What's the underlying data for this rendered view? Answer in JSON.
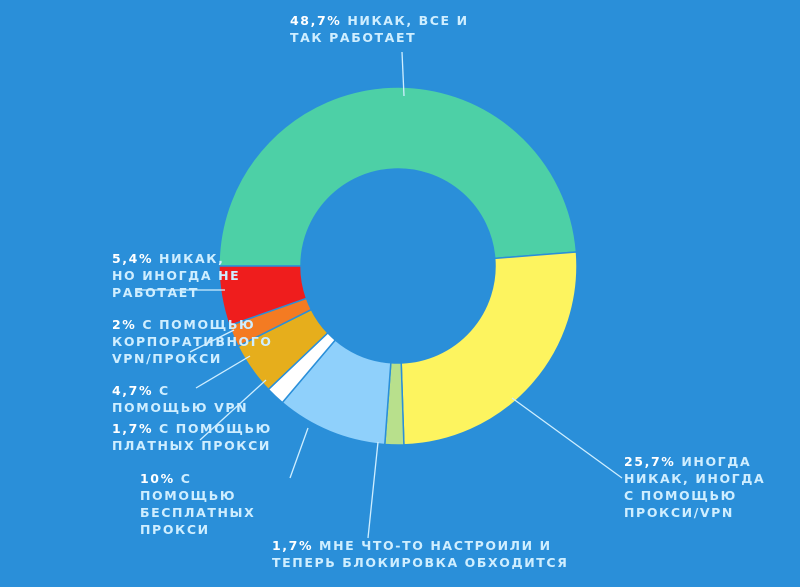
{
  "chart_data": {
    "type": "donut",
    "categories": [
      "НИКАК, ВСЕ И ТАК РАБОТАЕТ",
      "ИНОГДА НИКАК, ИНОГДА С ПОМОЩЬЮ ПРОКСИ/VPN",
      "МНЕ ЧТО-ТО НАСТРОИЛИ И ТЕПЕРЬ БЛОКИРОВКА ОБХОДИТСЯ",
      "С ПОМОЩЬЮ БЕСПЛАТНЫХ ПРОКСИ",
      "С ПОМОЩЬЮ ПЛАТНЫХ ПРОКСИ",
      "С ПОМОЩЬЮ VPN",
      "С ПОМОЩЬЮ КОРПОРАТИВНОГО VPN/ПРОКСИ",
      "НИКАК, НО ИНОГДА НЕ РАБОТАЕТ"
    ],
    "values": [
      48.7,
      25.7,
      1.7,
      10,
      1.7,
      4.7,
      2,
      5.4
    ],
    "value_labels": [
      "48,7%",
      "25,7%",
      "1,7%",
      "10%",
      "1,7%",
      "4,7%",
      "2%",
      "5,4%"
    ],
    "colors": [
      "#4dd0a6",
      "#fdf45f",
      "#b8e08c",
      "#8fd0fb",
      "#ffffff",
      "#e6ae1c",
      "#f47b22",
      "#ef1d1d"
    ]
  }
}
